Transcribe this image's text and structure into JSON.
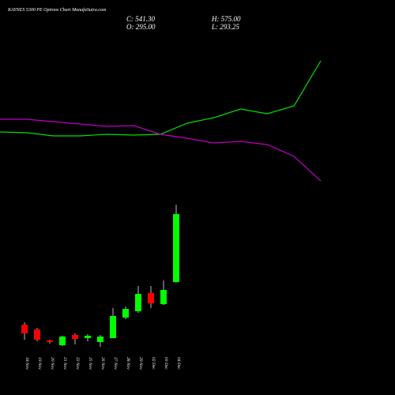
{
  "chart_data": {
    "type": "candlestick",
    "title": "KAYNES 5300 PE Options Chart MunafaSutra.com",
    "ohlc_labels": [
      "C: 541.30",
      "H: 575.00",
      "O: 295.00",
      "L: 293.25"
    ],
    "categories": [
      "18 Nov",
      "19 Nov",
      "20 Nov",
      "21 Nov",
      "22 Nov",
      "25 Nov",
      "26 Nov",
      "27 Nov",
      "28 Nov",
      "29 Nov",
      "02 Dec",
      "03 Dec",
      "04 Dec"
    ],
    "open": [
      140.3,
      123.2,
      83.1,
      65.8,
      103.1,
      91.7,
      77.3,
      91.7,
      166.1,
      189,
      254.9,
      214.8,
      295
    ],
    "high": [
      148.9,
      128.9,
      86,
      100.3,
      108.8,
      106,
      103.1,
      200.5,
      206.2,
      280.7,
      280.7,
      300.7,
      575
    ],
    "low": [
      86,
      80.2,
      71.6,
      62.9,
      68.7,
      80.2,
      60.2,
      91.7,
      160.4,
      183.3,
      200.5,
      211.9,
      293.25
    ],
    "close": [
      108.8,
      86,
      77.3,
      97.4,
      88.8,
      100.3,
      97.4,
      171.8,
      197.6,
      252,
      217.7,
      266.4,
      541.3
    ],
    "up_color": "#00ff00",
    "down_color": "#ff0000",
    "ylim": [
      0,
      800
    ],
    "y2lim": [
      0,
      300
    ],
    "series": [
      {
        "color": "#00e000",
        "axis": "y2",
        "values": [
          133,
          132,
          128,
          128,
          130,
          129,
          130,
          144,
          151,
          162,
          156,
          166,
          223
        ]
      },
      {
        "color": "#c000c0",
        "axis": "y2",
        "values": [
          149,
          149,
          146,
          143,
          140,
          141,
          130,
          125,
          119,
          121,
          117,
          102,
          71
        ]
      }
    ]
  }
}
